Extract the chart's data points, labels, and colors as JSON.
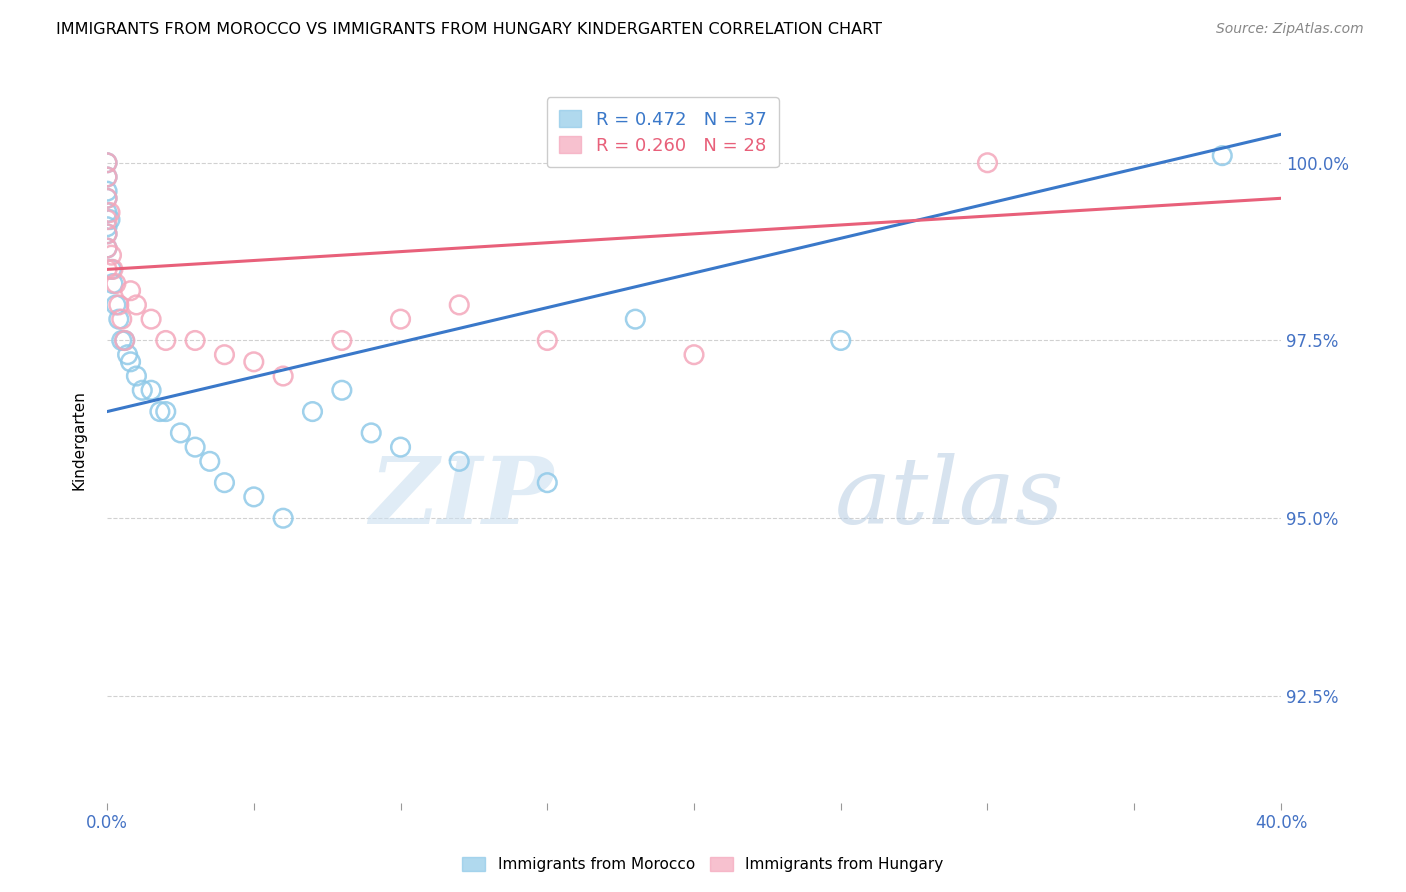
{
  "title": "IMMIGRANTS FROM MOROCCO VS IMMIGRANTS FROM HUNGARY KINDERGARTEN CORRELATION CHART",
  "source": "Source: ZipAtlas.com",
  "ylabel": "Kindergarten",
  "xlim": [
    0.0,
    40.0
  ],
  "ylim": [
    91.0,
    101.2
  ],
  "yticks": [
    92.5,
    95.0,
    97.5,
    100.0
  ],
  "xticks": [
    0.0,
    5.0,
    10.0,
    15.0,
    20.0,
    25.0,
    30.0,
    35.0,
    40.0
  ],
  "x_label_show": [
    0.0,
    40.0
  ],
  "blue_R": 0.472,
  "blue_N": 37,
  "pink_R": 0.26,
  "pink_N": 28,
  "blue_color": "#8fc9e8",
  "pink_color": "#f4a7bb",
  "blue_line_color": "#3a78c9",
  "pink_line_color": "#e8607a",
  "legend_label_blue": "Immigrants from Morocco",
  "legend_label_pink": "Immigrants from Hungary",
  "blue_x": [
    0.0,
    0.0,
    0.0,
    0.0,
    0.0,
    0.0,
    0.0,
    0.0,
    0.1,
    0.15,
    0.2,
    0.3,
    0.4,
    0.5,
    0.6,
    0.7,
    0.8,
    1.0,
    1.2,
    1.5,
    1.8,
    2.0,
    2.5,
    3.0,
    3.5,
    4.0,
    5.0,
    6.0,
    7.0,
    8.0,
    9.0,
    10.0,
    12.0,
    15.0,
    18.0,
    25.0,
    38.0
  ],
  "blue_y": [
    100.0,
    99.8,
    99.6,
    99.5,
    99.3,
    99.1,
    99.0,
    98.8,
    99.2,
    98.5,
    98.3,
    98.0,
    97.8,
    97.5,
    97.5,
    97.3,
    97.2,
    97.0,
    96.8,
    96.8,
    96.5,
    96.5,
    96.2,
    96.0,
    95.8,
    95.5,
    95.3,
    95.0,
    96.5,
    96.8,
    96.2,
    96.0,
    95.8,
    95.5,
    97.8,
    97.5,
    100.1
  ],
  "pink_x": [
    0.0,
    0.0,
    0.0,
    0.0,
    0.0,
    0.0,
    0.0,
    0.1,
    0.15,
    0.2,
    0.3,
    0.4,
    0.5,
    0.6,
    0.8,
    1.0,
    1.5,
    2.0,
    3.0,
    4.0,
    5.0,
    6.0,
    8.0,
    10.0,
    12.0,
    15.0,
    20.0,
    30.0
  ],
  "pink_y": [
    100.0,
    99.8,
    99.5,
    99.2,
    99.0,
    98.8,
    98.5,
    99.3,
    98.7,
    98.5,
    98.3,
    98.0,
    97.8,
    97.5,
    98.2,
    98.0,
    97.8,
    97.5,
    97.5,
    97.3,
    97.2,
    97.0,
    97.5,
    97.8,
    98.0,
    97.5,
    97.3,
    100.0
  ],
  "blue_trend_x0": 0.0,
  "blue_trend_x1": 40.0,
  "blue_trend_y0": 96.5,
  "blue_trend_y1": 100.4,
  "pink_trend_x0": 0.0,
  "pink_trend_x1": 40.0,
  "pink_trend_y0": 98.5,
  "pink_trend_y1": 99.5,
  "watermark_zip": "ZIP",
  "watermark_atlas": "atlas",
  "background_color": "#ffffff",
  "grid_color": "#cccccc",
  "tick_label_color": "#4472c4",
  "axis_color": "#999999"
}
